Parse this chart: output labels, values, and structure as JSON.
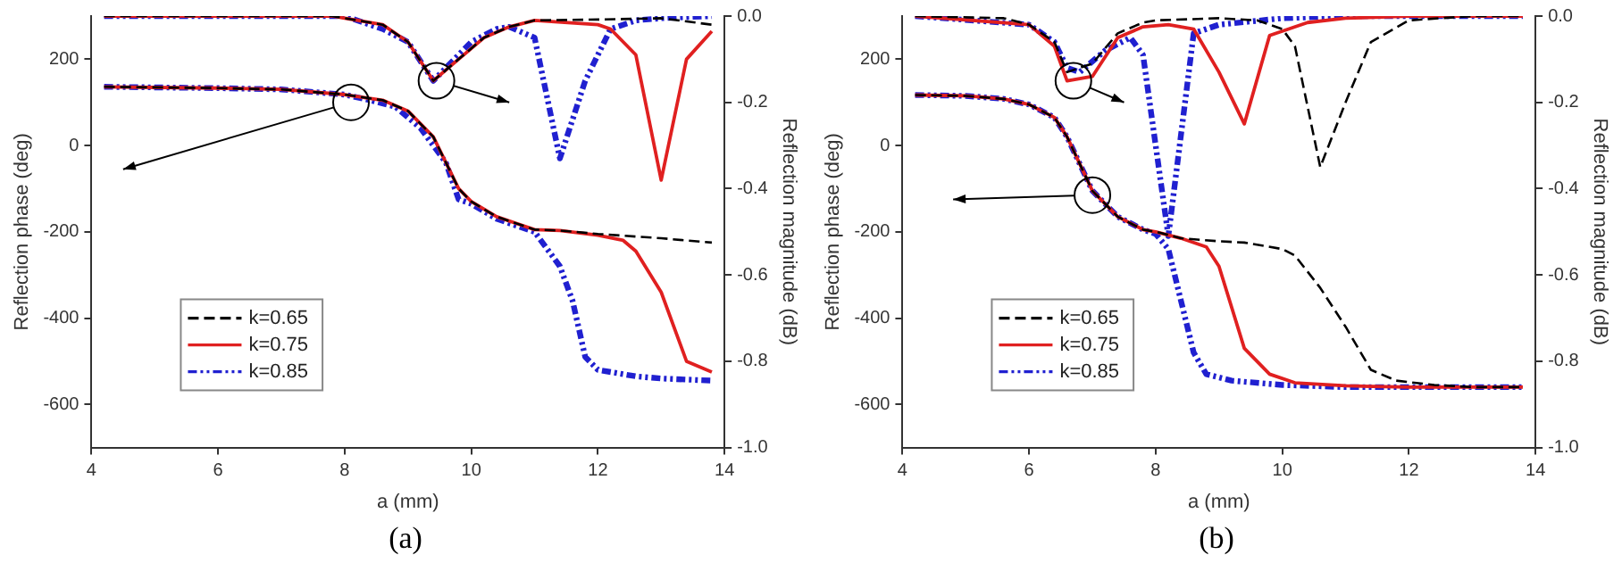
{
  "chart_data": [
    {
      "type": "line",
      "xlabel": "a (mm)",
      "ylabel": "Reflection phase (deg)",
      "y2label": "Reflection magnitude (dB)",
      "annotations": [
        "(a)"
      ],
      "legend": "bottom left",
      "grid": false,
      "xlim": [
        4,
        14
      ],
      "xticks": [
        4,
        6,
        8,
        10,
        12,
        14
      ],
      "ylim": [
        -700,
        300
      ],
      "yticks": [
        -600,
        -400,
        -200,
        0,
        200
      ],
      "y2lim": [
        -1,
        0
      ],
      "y2ticks": [
        {
          "value": -1,
          "label": "-1.0"
        },
        {
          "value": -0.8,
          "label": "-0.8"
        },
        {
          "value": -0.6,
          "label": "-0.6"
        },
        {
          "value": -0.4,
          "label": "-0.4"
        },
        {
          "value": -0.2,
          "label": "-0.2"
        },
        {
          "value": 0,
          "label": "0.0"
        }
      ],
      "series": [
        {
          "name": "k=0.65",
          "color": "#000000",
          "line_style": "dashed",
          "x": [
            4.2,
            6,
            7,
            8,
            8.6,
            9,
            9.4,
            9.6,
            9.8,
            10,
            10.4,
            10.8,
            11,
            11.4,
            12,
            13,
            13.8
          ],
          "values": [
            136,
            133,
            130,
            118,
            105,
            80,
            20,
            -40,
            -100,
            -130,
            -165,
            -185,
            -195,
            -197,
            -205,
            -215,
            -225
          ]
        },
        {
          "name": "k=0.75",
          "color": "#e02020",
          "line_style": "solid",
          "x": [
            4.2,
            6,
            7,
            8,
            8.6,
            9,
            9.4,
            9.6,
            9.8,
            10,
            10.4,
            10.8,
            11,
            11.4,
            12,
            12.4,
            12.6,
            13,
            13.4,
            13.8
          ],
          "values": [
            136,
            133,
            130,
            118,
            105,
            80,
            20,
            -40,
            -100,
            -130,
            -165,
            -185,
            -195,
            -197,
            -208,
            -220,
            -245,
            -340,
            -500,
            -525
          ]
        },
        {
          "name": "k=0.85",
          "color": "#2020d0",
          "line_style": "dotted",
          "x": [
            4.2,
            6,
            7,
            8,
            8.4,
            8.8,
            9.2,
            9.6,
            9.8,
            10,
            10.4,
            11,
            11.4,
            11.6,
            11.8,
            12,
            12.6,
            13,
            13.8
          ],
          "values": [
            136,
            133,
            130,
            118,
            105,
            90,
            40,
            -40,
            -125,
            -135,
            -170,
            -200,
            -280,
            -360,
            -490,
            -520,
            -535,
            -540,
            -545
          ]
        },
        {
          "color": "#000000",
          "line_style": "dashed",
          "axis": "y2",
          "x": [
            4.2,
            7.8,
            8,
            8.6,
            9,
            9.4,
            9.8,
            10.2,
            10.6,
            11,
            12,
            13,
            13.8
          ],
          "values": [
            0,
            0,
            -0.005,
            -0.02,
            -0.06,
            -0.15,
            -0.1,
            -0.05,
            -0.025,
            -0.01,
            -0.008,
            -0.005,
            -0.02
          ]
        },
        {
          "color": "#e02020",
          "line_style": "solid",
          "axis": "y2",
          "x": [
            4.2,
            7.8,
            8,
            8.6,
            9,
            9.4,
            9.8,
            10.2,
            10.6,
            11,
            12,
            12.2,
            12.6,
            13,
            13.4,
            13.8
          ],
          "values": [
            0,
            0,
            -0.005,
            -0.02,
            -0.06,
            -0.15,
            -0.1,
            -0.05,
            -0.025,
            -0.01,
            -0.02,
            -0.03,
            -0.09,
            -0.38,
            -0.1,
            -0.035
          ]
        },
        {
          "color": "#2020d0",
          "line_style": "dotted",
          "axis": "y2",
          "x": [
            4.2,
            8,
            8.6,
            9,
            9.4,
            9.6,
            10,
            10.4,
            10.6,
            11,
            11.4,
            11.8,
            12.2,
            12.6,
            13,
            13.8
          ],
          "values": [
            0,
            0,
            -0.03,
            -0.06,
            -0.15,
            -0.12,
            -0.06,
            -0.03,
            -0.025,
            -0.05,
            -0.33,
            -0.15,
            -0.03,
            -0.01,
            -0.005,
            0
          ]
        }
      ]
    },
    {
      "type": "line",
      "xlabel": "a (mm)",
      "ylabel": "Reflection phase (deg)",
      "y2label": "Reflection magnitude (dB)",
      "annotations": [
        "(b)"
      ],
      "legend": "bottom left",
      "grid": false,
      "xlim": [
        4,
        14
      ],
      "xticks": [
        4,
        6,
        8,
        10,
        12,
        14
      ],
      "ylim": [
        -700,
        300
      ],
      "yticks": [
        -600,
        -400,
        -200,
        0,
        200
      ],
      "y2lim": [
        -1,
        0
      ],
      "y2ticks": [
        {
          "value": -1,
          "label": "-1.0"
        },
        {
          "value": -0.8,
          "label": "-0.8"
        },
        {
          "value": -0.6,
          "label": "-0.6"
        },
        {
          "value": -0.4,
          "label": "-0.4"
        },
        {
          "value": -0.2,
          "label": "-0.2"
        },
        {
          "value": 0,
          "label": "0.0"
        }
      ],
      "series": [
        {
          "name": "k=0.65",
          "color": "#000000",
          "line_style": "dashed",
          "x": [
            4.2,
            5,
            5.6,
            6,
            6.4,
            6.6,
            7,
            7.4,
            7.8,
            8,
            8.4,
            9,
            9.4,
            10,
            10.2,
            10.6,
            11,
            11.4,
            11.8,
            12.4,
            13,
            13.8
          ],
          "values": [
            117,
            115,
            108,
            95,
            65,
            20,
            -105,
            -165,
            -195,
            -200,
            -215,
            -222,
            -225,
            -240,
            -255,
            -330,
            -420,
            -520,
            -545,
            -555,
            -560,
            -560
          ]
        },
        {
          "name": "k=0.75",
          "color": "#e02020",
          "line_style": "solid",
          "x": [
            4.2,
            5,
            5.6,
            6,
            6.4,
            6.6,
            7,
            7.4,
            7.8,
            8,
            8.4,
            8.8,
            9,
            9.4,
            9.8,
            10.2,
            11,
            12,
            13.8
          ],
          "values": [
            117,
            115,
            108,
            95,
            65,
            20,
            -105,
            -165,
            -195,
            -200,
            -215,
            -235,
            -280,
            -470,
            -530,
            -550,
            -557,
            -560,
            -560
          ]
        },
        {
          "name": "k=0.85",
          "color": "#2020d0",
          "line_style": "dotted",
          "x": [
            4.2,
            5,
            5.6,
            6,
            6.4,
            6.6,
            7,
            7.4,
            7.8,
            8,
            8.2,
            8.4,
            8.6,
            8.8,
            9.2,
            10,
            11,
            13.8
          ],
          "values": [
            117,
            115,
            108,
            95,
            65,
            20,
            -105,
            -165,
            -195,
            -205,
            -240,
            -360,
            -480,
            -530,
            -545,
            -555,
            -560,
            -560
          ]
        },
        {
          "color": "#000000",
          "line_style": "dashed",
          "axis": "y2",
          "x": [
            4.2,
            5.6,
            6,
            6.4,
            6.6,
            6.8,
            7,
            7.4,
            7.8,
            8,
            9,
            9.6,
            10,
            10.2,
            10.6,
            11,
            11.4,
            12,
            13,
            13.8
          ],
          "values": [
            0,
            -0.005,
            -0.02,
            -0.06,
            -0.13,
            -0.12,
            -0.11,
            -0.04,
            -0.015,
            -0.01,
            -0.005,
            -0.01,
            -0.03,
            -0.07,
            -0.35,
            -0.2,
            -0.06,
            -0.01,
            0,
            0
          ]
        },
        {
          "color": "#e02020",
          "line_style": "solid",
          "axis": "y2",
          "x": [
            4.2,
            6,
            6.4,
            6.6,
            7,
            7.4,
            7.8,
            8.2,
            8.6,
            9,
            9.4,
            9.8,
            10.4,
            11,
            12,
            13.8
          ],
          "values": [
            0,
            -0.02,
            -0.07,
            -0.15,
            -0.14,
            -0.05,
            -0.025,
            -0.02,
            -0.03,
            -0.13,
            -0.25,
            -0.045,
            -0.015,
            -0.005,
            0,
            0
          ]
        },
        {
          "color": "#2020d0",
          "line_style": "dotted",
          "axis": "y2",
          "x": [
            4.2,
            6,
            6.4,
            6.6,
            6.8,
            7.2,
            7.6,
            7.8,
            8.2,
            8.6,
            9,
            10,
            11,
            13.8
          ],
          "values": [
            0,
            -0.02,
            -0.06,
            -0.12,
            -0.13,
            -0.08,
            -0.05,
            -0.09,
            -0.51,
            -0.04,
            -0.02,
            -0.005,
            0,
            0
          ]
        }
      ]
    }
  ]
}
